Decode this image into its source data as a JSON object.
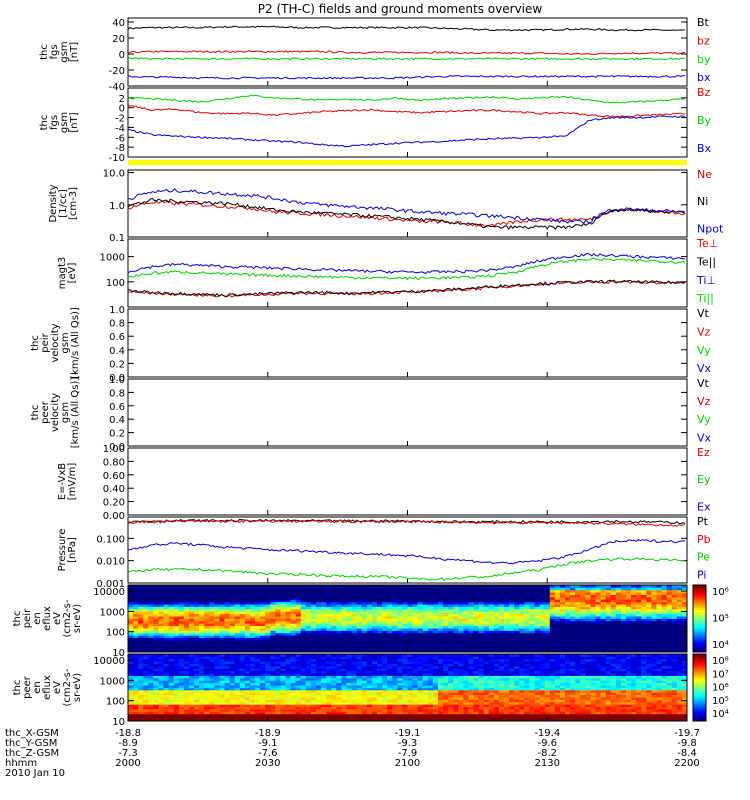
{
  "title": "P2 (TH-C) fields and ground moments overview",
  "colors": {
    "black": "#000000",
    "red": "#e00000",
    "green": "#00d000",
    "blue": "#0000d0",
    "yellow": "#ffff00"
  },
  "chart_data": [
    {
      "type": "line",
      "id": "fgs_gsm",
      "ylabel": [
        "thc",
        "fgs",
        "gsm",
        "[nT]"
      ],
      "ylim": [
        -40,
        45
      ],
      "yticks": [
        40,
        20,
        0,
        -20,
        -40
      ],
      "series": [
        {
          "name": "Bt",
          "color": "black",
          "values": [
            32,
            33,
            33,
            33,
            34,
            34,
            34,
            33,
            33,
            33,
            33,
            33,
            33,
            32,
            31,
            30,
            30,
            30,
            31,
            31,
            30,
            30,
            30,
            29
          ]
        },
        {
          "name": "bz",
          "color": "red",
          "values": [
            2,
            3,
            3,
            3,
            3,
            3,
            3,
            3,
            3,
            2,
            2,
            2,
            2,
            2,
            1,
            1,
            1,
            1,
            0,
            0,
            1,
            1,
            1,
            1
          ]
        },
        {
          "name": "by",
          "color": "green",
          "values": [
            -5,
            -6,
            -6,
            -6,
            -6,
            -6,
            -6,
            -6,
            -6,
            -6,
            -6,
            -6,
            -6,
            -6,
            -6,
            -6,
            -6,
            -6,
            -6,
            -6,
            -6,
            -6,
            -6,
            -6
          ]
        },
        {
          "name": "bx",
          "color": "blue",
          "values": [
            -28,
            -29,
            -29,
            -30,
            -30,
            -30,
            -30,
            -30,
            -30,
            -30,
            -30,
            -30,
            -29,
            -28,
            -28,
            -28,
            -28,
            -28,
            -28,
            -28,
            -28,
            -28,
            -28,
            -28
          ]
        }
      ]
    },
    {
      "type": "line",
      "id": "fgs_gse_zoom",
      "ylabel": [
        "thc",
        "fgs",
        "gsm",
        "[nT]"
      ],
      "ylim": [
        -10,
        4
      ],
      "yticks": [
        2,
        0,
        -2,
        -4,
        -6,
        -8,
        -10
      ],
      "series": [
        {
          "name": "Bz",
          "color": "red",
          "values": [
            0.5,
            -0.5,
            -0.3,
            -1.0,
            -1.2,
            -1.1,
            -1.5,
            -1.2,
            -0.8,
            -0.6,
            -0.4,
            -0.8,
            -1.0,
            -0.8,
            -0.6,
            -0.5,
            -0.8,
            -1.2,
            -1.0,
            -1.5,
            -1.8,
            -1.6,
            -1.4,
            -1.2
          ]
        },
        {
          "name": "By",
          "color": "green",
          "values": [
            2.0,
            1.8,
            1.5,
            1.2,
            1.8,
            2.5,
            2.0,
            1.8,
            1.5,
            1.8,
            1.5,
            2.0,
            1.5,
            1.8,
            2.0,
            2.2,
            1.8,
            2.0,
            2.2,
            1.5,
            1.0,
            1.2,
            1.5,
            1.8
          ]
        },
        {
          "name": "Bx",
          "color": "blue",
          "values": [
            -4.5,
            -5.5,
            -5.8,
            -6.0,
            -6.2,
            -6.5,
            -6.8,
            -7.0,
            -7.5,
            -7.8,
            -7.5,
            -7.2,
            -7.0,
            -6.8,
            -6.5,
            -6.3,
            -6.2,
            -6.0,
            -5.8,
            -2.5,
            -2.0,
            -2.0,
            -1.8,
            -1.8
          ]
        }
      ]
    },
    {
      "type": "line",
      "id": "density",
      "log": true,
      "ylabel": [
        "Density",
        "[1/cc]",
        "[cm-3]"
      ],
      "ylim": [
        0.1,
        12
      ],
      "yticks": [
        10.0,
        1.0,
        0.1
      ],
      "yticklabels": [
        "10.0",
        "1.0",
        "0.1"
      ],
      "series": [
        {
          "name": "Ne",
          "color": "red",
          "values": [
            0.8,
            1.2,
            1.1,
            1.0,
            0.9,
            0.8,
            0.6,
            0.55,
            0.5,
            0.45,
            0.4,
            0.35,
            0.3,
            0.3,
            0.25,
            0.22,
            0.3,
            0.35,
            0.35,
            0.35,
            0.7,
            0.7,
            0.6,
            0.55
          ]
        },
        {
          "name": "Ni",
          "color": "black",
          "values": [
            0.9,
            1.4,
            1.3,
            1.2,
            1.1,
            0.9,
            0.7,
            0.6,
            0.55,
            0.5,
            0.45,
            0.4,
            0.35,
            0.3,
            0.25,
            0.2,
            0.2,
            0.2,
            0.2,
            0.25,
            0.7,
            0.7,
            0.6,
            0.6
          ]
        },
        {
          "name": "Npot",
          "color": "blue",
          "values": [
            1.5,
            2.5,
            2.8,
            2.5,
            2.2,
            2.0,
            1.6,
            1.2,
            1.0,
            0.9,
            0.8,
            0.7,
            0.6,
            0.55,
            0.5,
            0.45,
            0.4,
            0.35,
            0.3,
            0.3,
            0.75,
            0.7,
            0.65,
            0.6
          ]
        }
      ]
    },
    {
      "type": "line",
      "id": "temperature",
      "log": true,
      "ylabel": [
        "magt3",
        "[eV]"
      ],
      "ylim": [
        10,
        5000
      ],
      "yticks": [
        1000,
        100
      ],
      "yticklabels": [
        "1000",
        "100"
      ],
      "series": [
        {
          "name": "Te⊥",
          "color": "red",
          "values": [
            40,
            35,
            32,
            30,
            28,
            30,
            32,
            35,
            35,
            33,
            35,
            38,
            40,
            45,
            50,
            60,
            70,
            80,
            90,
            95,
            100,
            95,
            90,
            90
          ]
        },
        {
          "name": "Te||",
          "color": "black",
          "values": [
            45,
            38,
            35,
            32,
            30,
            32,
            35,
            38,
            38,
            35,
            38,
            40,
            42,
            48,
            55,
            65,
            75,
            85,
            95,
            100,
            105,
            100,
            95,
            95
          ]
        },
        {
          "name": "Ti⊥",
          "color": "blue",
          "values": [
            250,
            400,
            500,
            450,
            400,
            380,
            350,
            330,
            300,
            280,
            260,
            250,
            240,
            250,
            260,
            300,
            400,
            700,
            1000,
            1200,
            1100,
            1000,
            900,
            850
          ]
        },
        {
          "name": "Ti||",
          "color": "green",
          "values": [
            150,
            220,
            250,
            230,
            200,
            190,
            180,
            170,
            160,
            150,
            145,
            140,
            140,
            145,
            150,
            180,
            250,
            450,
            650,
            800,
            750,
            700,
            650,
            600
          ]
        }
      ]
    },
    {
      "type": "line",
      "id": "peir_velocity",
      "ylabel": [
        "thc",
        "peir",
        "velocity",
        "gsm",
        "[km/s (All Qs)]"
      ],
      "ylim": [
        0,
        1
      ],
      "yticks": [
        1.0,
        0.8,
        0.6,
        0.4,
        0.2,
        0.0
      ],
      "yticklabels": [
        "1.0",
        "0.8",
        "0.6",
        "0.4",
        "0.2",
        "0.0"
      ],
      "series": [
        {
          "name": "Vt",
          "color": "black",
          "values": []
        },
        {
          "name": "Vz",
          "color": "red",
          "values": []
        },
        {
          "name": "Vy",
          "color": "green",
          "values": []
        },
        {
          "name": "Vx",
          "color": "blue",
          "values": []
        }
      ]
    },
    {
      "type": "line",
      "id": "peer_velocity",
      "ylabel": [
        "thc",
        "peer",
        "velocity",
        "gsm",
        "[km/s (All Qs)]"
      ],
      "ylim": [
        0,
        1
      ],
      "yticks": [
        1.0,
        0.8,
        0.6,
        0.4,
        0.2,
        0.0
      ],
      "yticklabels": [
        "1.0",
        "0.8",
        "0.6",
        "0.4",
        "0.2",
        "0.0"
      ],
      "series": [
        {
          "name": "Vt",
          "color": "black",
          "values": []
        },
        {
          "name": "Vz",
          "color": "red",
          "values": []
        },
        {
          "name": "Vy",
          "color": "green",
          "values": []
        },
        {
          "name": "Vx",
          "color": "blue",
          "values": []
        }
      ]
    },
    {
      "type": "line",
      "id": "efield",
      "ylabel": [
        "E=-VxB",
        "[mV/m]"
      ],
      "ylim": [
        0,
        1
      ],
      "yticks": [
        1.0,
        0.8,
        0.6,
        0.4,
        0.2,
        0.0
      ],
      "yticklabels": [
        "1.00",
        "0.80",
        "0.60",
        "0.40",
        "0.20",
        "0.00"
      ],
      "series": [
        {
          "name": "Ez",
          "color": "red",
          "values": []
        },
        {
          "name": "Ey",
          "color": "green",
          "values": []
        },
        {
          "name": "Ex",
          "color": "blue",
          "values": []
        }
      ]
    },
    {
      "type": "line",
      "id": "pressure",
      "log": true,
      "ylabel": [
        "Pressure",
        "[nPa]"
      ],
      "ylim": [
        0.001,
        0.9
      ],
      "yticks": [
        0.1,
        0.01,
        0.001
      ],
      "yticklabels": [
        "0.100",
        "0.010",
        "0.001"
      ],
      "series": [
        {
          "name": "Pt",
          "color": "black",
          "values": [
            0.55,
            0.6,
            0.62,
            0.62,
            0.62,
            0.62,
            0.62,
            0.62,
            0.6,
            0.6,
            0.6,
            0.6,
            0.58,
            0.56,
            0.55,
            0.55,
            0.55,
            0.55,
            0.55,
            0.56,
            0.58,
            0.55,
            0.53,
            0.5
          ]
        },
        {
          "name": "Pb",
          "color": "red",
          "values": [
            0.5,
            0.55,
            0.58,
            0.58,
            0.58,
            0.58,
            0.58,
            0.58,
            0.56,
            0.56,
            0.56,
            0.56,
            0.55,
            0.53,
            0.52,
            0.5,
            0.5,
            0.5,
            0.5,
            0.48,
            0.45,
            0.42,
            0.4,
            0.38
          ]
        },
        {
          "name": "Pe",
          "color": "green",
          "values": [
            0.003,
            0.004,
            0.004,
            0.004,
            0.0035,
            0.003,
            0.0025,
            0.0025,
            0.0022,
            0.002,
            0.002,
            0.0018,
            0.0015,
            0.0015,
            0.0018,
            0.002,
            0.003,
            0.004,
            0.007,
            0.01,
            0.012,
            0.012,
            0.011,
            0.01
          ]
        },
        {
          "name": "Pi",
          "color": "blue",
          "values": [
            0.03,
            0.05,
            0.06,
            0.05,
            0.04,
            0.035,
            0.03,
            0.028,
            0.025,
            0.022,
            0.02,
            0.018,
            0.015,
            0.012,
            0.01,
            0.008,
            0.008,
            0.01,
            0.015,
            0.03,
            0.07,
            0.08,
            0.075,
            0.07
          ]
        }
      ]
    },
    {
      "type": "heatmap",
      "id": "peir_spec",
      "log": true,
      "ylabel": [
        "thc",
        "peir",
        "en",
        "eflux",
        "eV",
        "(cm2-s-",
        "sr-eV)"
      ],
      "ylim": [
        10,
        20000
      ],
      "yticks": [
        10000,
        1000,
        100,
        10
      ],
      "yticklabels": [
        "10000",
        "1000",
        "100",
        "10"
      ],
      "colorbar": {
        "ticks": [
          "10⁶",
          "10⁵",
          "10⁴"
        ]
      }
    },
    {
      "type": "heatmap",
      "id": "peer_spec",
      "log": true,
      "ylabel": [
        "thc",
        "peer",
        "en",
        "eflux",
        "eV",
        "(cm2-s-",
        "sr-eV)"
      ],
      "ylim": [
        10,
        20000
      ],
      "yticks": [
        10000,
        1000,
        100,
        10
      ],
      "yticklabels": [
        "10000",
        "1000",
        "100",
        "10"
      ],
      "colorbar": {
        "ticks": [
          "10⁸",
          "10⁷",
          "10⁶",
          "10⁵",
          "10⁴"
        ]
      }
    }
  ],
  "yellow_bar": true,
  "xaxis": {
    "rows": [
      {
        "label": "thc_X-GSM",
        "values": [
          "-18.8",
          "-18.9",
          "-19.1",
          "-19.4",
          "-19.7"
        ]
      },
      {
        "label": "thc_Y-GSM",
        "values": [
          "-8.9",
          "-9.1",
          "-9.3",
          "-9.6",
          "-9.8"
        ]
      },
      {
        "label": "thc_Z-GSM",
        "values": [
          "-7.3",
          "-7.6",
          "-7.9",
          "-8.2",
          "-8.4"
        ]
      },
      {
        "label": "hhmm",
        "values": [
          "2000",
          "2030",
          "2100",
          "2130",
          "2200"
        ]
      }
    ],
    "date": "2010 Jan 10"
  }
}
